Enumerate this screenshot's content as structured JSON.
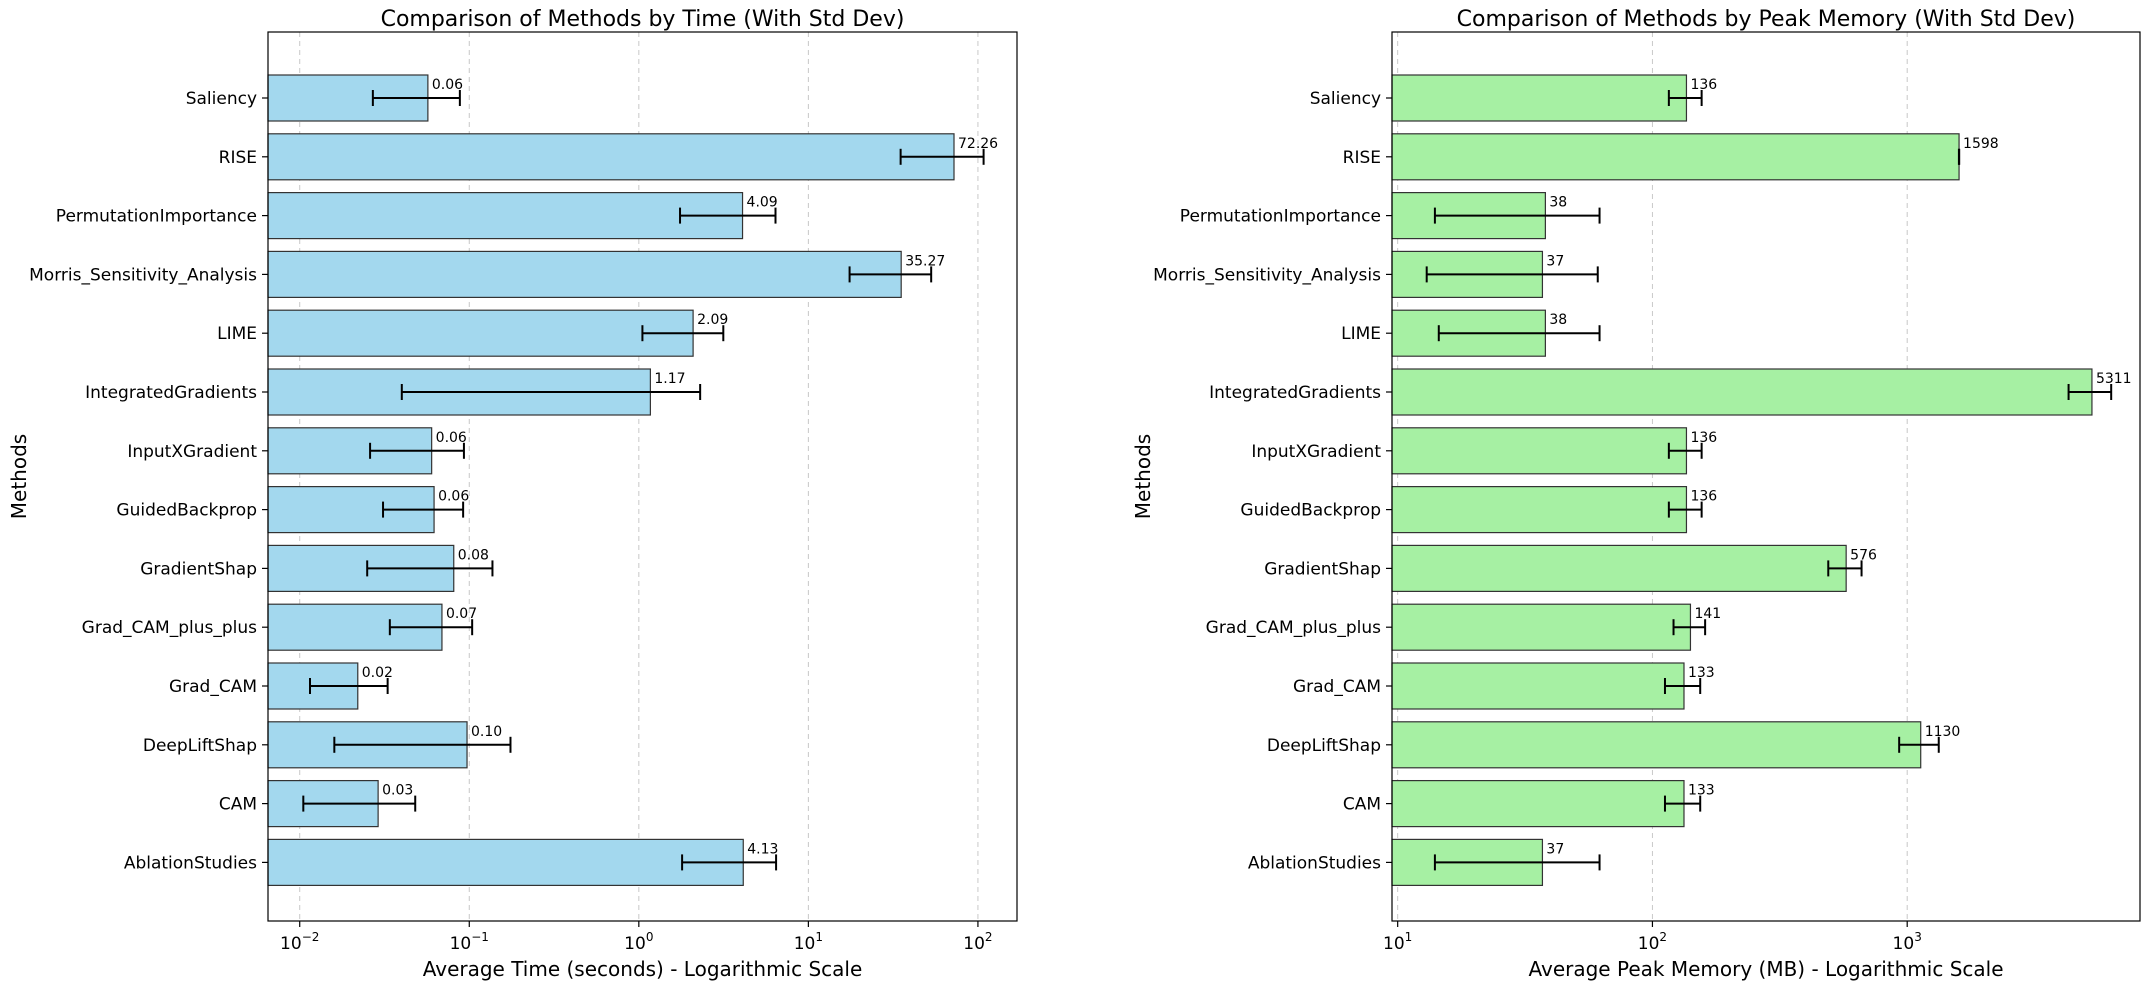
{
  "chart_data": [
    {
      "type": "bar",
      "orientation": "horizontal",
      "title": "Comparison of Methods by Time (With Std Dev)",
      "xlabel": "Average Time (seconds) - Logarithmic Scale",
      "ylabel": "Methods",
      "xscale": "log",
      "xlim": [
        0.0065,
        170
      ],
      "xticks": [
        0.01,
        0.1,
        1,
        10,
        100
      ],
      "xtick_labels": [
        {
          "base": "10",
          "exp": "−2"
        },
        {
          "base": "10",
          "exp": "−1"
        },
        {
          "base": "10",
          "exp": "0"
        },
        {
          "base": "10",
          "exp": "1"
        },
        {
          "base": "10",
          "exp": "2"
        }
      ],
      "grid": "x",
      "bar_color": "#a3d8ee",
      "categories": [
        "Saliency",
        "RISE",
        "PermutationImportance",
        "Morris_Sensitivity_Analysis",
        "LIME",
        "IntegratedGradients",
        "InputXGradient",
        "GuidedBackprop",
        "GradientShap",
        "Grad_CAM_plus_plus",
        "Grad_CAM",
        "DeepLiftShap",
        "CAM",
        "AblationStudies"
      ],
      "values": [
        0.057,
        72.26,
        4.09,
        35.27,
        2.09,
        1.17,
        0.06,
        0.062,
        0.081,
        0.069,
        0.022,
        0.097,
        0.029,
        4.13
      ],
      "labels": [
        "0.06",
        "72.26",
        "4.09",
        "35.27",
        "2.09",
        "1.17",
        "0.06",
        "0.06",
        "0.08",
        "0.07",
        "0.02",
        "0.10",
        "0.03",
        "4.13"
      ],
      "err_low": [
        0.027,
        35.0,
        1.75,
        17.5,
        1.05,
        0.04,
        0.026,
        0.031,
        0.025,
        0.034,
        0.0115,
        0.016,
        0.0105,
        1.8
      ],
      "err_high": [
        0.088,
        108.0,
        6.4,
        53.0,
        3.15,
        2.3,
        0.093,
        0.092,
        0.137,
        0.104,
        0.033,
        0.175,
        0.048,
        6.45
      ]
    },
    {
      "type": "bar",
      "orientation": "horizontal",
      "title": "Comparison of Methods by Peak Memory (With Std Dev)",
      "xlabel": "Average Peak Memory (MB) - Logarithmic Scale",
      "ylabel": "Methods",
      "xscale": "log",
      "xlim": [
        9.5,
        8200
      ],
      "xticks": [
        10,
        100,
        1000
      ],
      "xtick_labels": [
        {
          "base": "10",
          "exp": "1"
        },
        {
          "base": "10",
          "exp": "2"
        },
        {
          "base": "10",
          "exp": "3"
        }
      ],
      "grid": "x",
      "bar_color": "#a6f0a3",
      "categories": [
        "Saliency",
        "RISE",
        "PermutationImportance",
        "Morris_Sensitivity_Analysis",
        "LIME",
        "IntegratedGradients",
        "InputXGradient",
        "GuidedBackprop",
        "GradientShap",
        "Grad_CAM_plus_plus",
        "Grad_CAM",
        "DeepLiftShap",
        "CAM",
        "AblationStudies"
      ],
      "values": [
        136,
        1598,
        38,
        37,
        38,
        5311,
        136,
        136,
        576,
        141,
        133,
        1130,
        133,
        37
      ],
      "labels": [
        "136",
        "1598",
        "38",
        "37",
        "38",
        "5311",
        "136",
        "136",
        "576",
        "141",
        "133",
        "1130",
        "133",
        "37"
      ],
      "err_low": [
        116,
        1596,
        14,
        13,
        14.5,
        4300,
        116,
        116,
        490,
        121,
        112,
        930,
        112,
        14
      ],
      "err_high": [
        156,
        1600,
        62,
        61,
        62,
        6320,
        156,
        156,
        662,
        161,
        154,
        1330,
        154,
        62
      ]
    }
  ]
}
